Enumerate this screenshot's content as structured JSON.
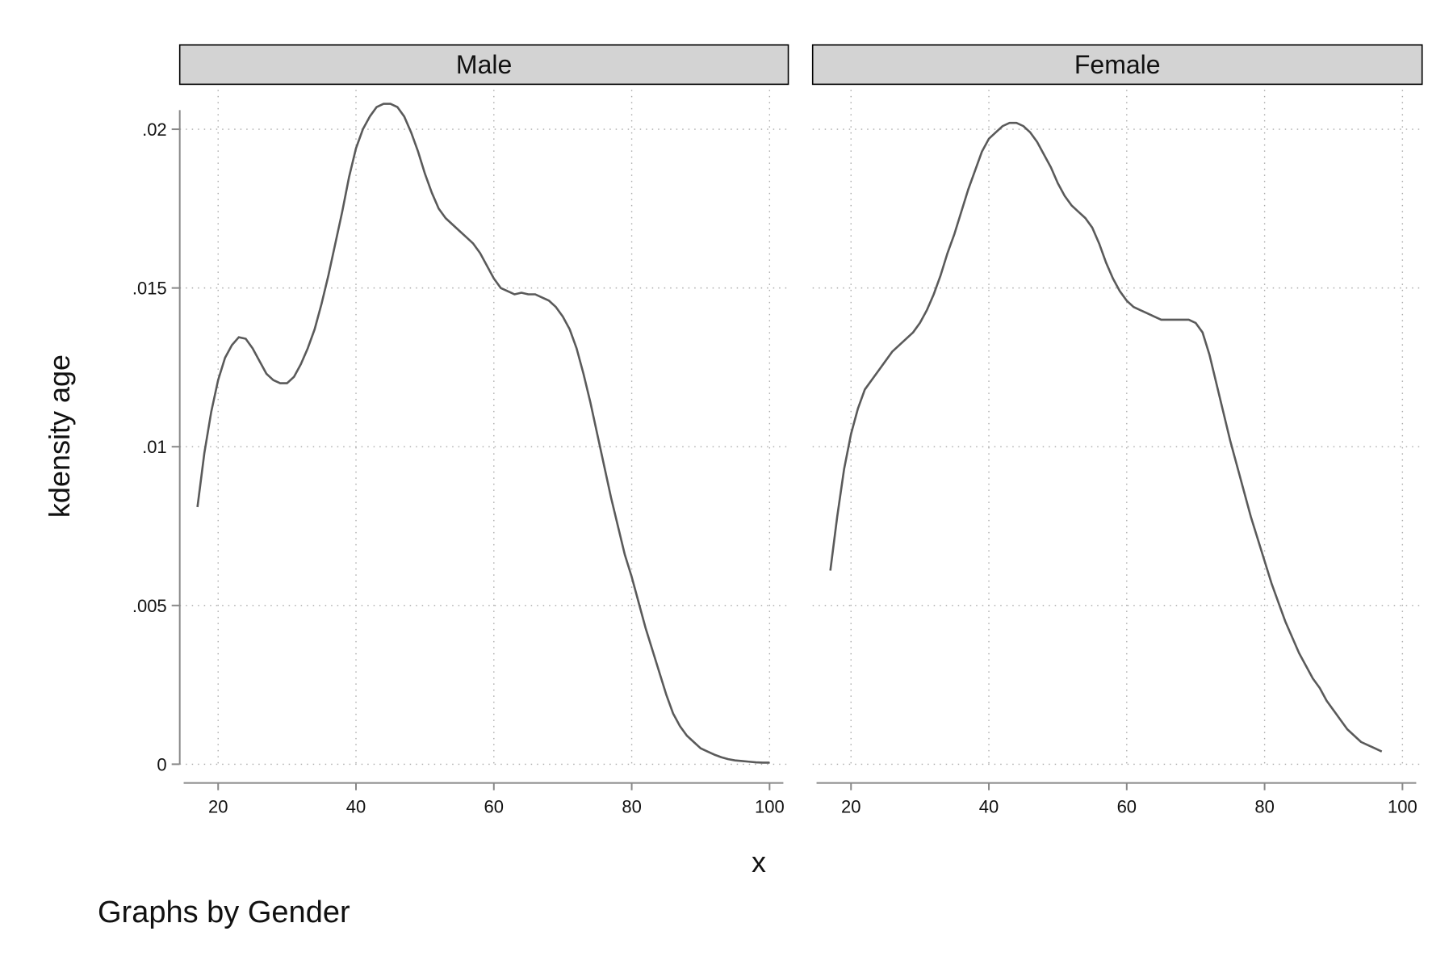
{
  "chart_data": {
    "type": "line",
    "ylabel": "kdensity age",
    "xlabel": "x",
    "note": "Graphs by Gender",
    "grid": true,
    "xlim": [
      15,
      102
    ],
    "ylim": [
      0,
      0.0211
    ],
    "xticks": [
      {
        "value": 20,
        "label": "20"
      },
      {
        "value": 40,
        "label": "40"
      },
      {
        "value": 60,
        "label": "60"
      },
      {
        "value": 80,
        "label": "80"
      },
      {
        "value": 100,
        "label": "100"
      }
    ],
    "yticks": [
      {
        "value": 0,
        "label": "0"
      },
      {
        "value": 0.005,
        "label": ".005"
      },
      {
        "value": 0.01,
        "label": ".01"
      },
      {
        "value": 0.015,
        "label": ".015"
      },
      {
        "value": 0.02,
        "label": ".02"
      }
    ],
    "line_color": "#5a5a5a",
    "panels": [
      {
        "strip": "Male",
        "points": [
          [
            17,
            0.0081
          ],
          [
            18,
            0.0098
          ],
          [
            19,
            0.0111
          ],
          [
            20,
            0.0121
          ],
          [
            21,
            0.0128
          ],
          [
            22,
            0.0132
          ],
          [
            23,
            0.01345
          ],
          [
            24,
            0.0134
          ],
          [
            25,
            0.0131
          ],
          [
            26,
            0.0127
          ],
          [
            27,
            0.0123
          ],
          [
            28,
            0.0121
          ],
          [
            29,
            0.012
          ],
          [
            30,
            0.012
          ],
          [
            31,
            0.0122
          ],
          [
            32,
            0.0126
          ],
          [
            33,
            0.0131
          ],
          [
            34,
            0.0137
          ],
          [
            35,
            0.0145
          ],
          [
            36,
            0.0154
          ],
          [
            37,
            0.0164
          ],
          [
            38,
            0.0174
          ],
          [
            39,
            0.0185
          ],
          [
            40,
            0.0194
          ],
          [
            41,
            0.02
          ],
          [
            42,
            0.0204
          ],
          [
            43,
            0.0207
          ],
          [
            44,
            0.0208
          ],
          [
            45,
            0.0208
          ],
          [
            46,
            0.0207
          ],
          [
            47,
            0.0204
          ],
          [
            48,
            0.0199
          ],
          [
            49,
            0.0193
          ],
          [
            50,
            0.0186
          ],
          [
            51,
            0.018
          ],
          [
            52,
            0.0175
          ],
          [
            53,
            0.0172
          ],
          [
            54,
            0.017
          ],
          [
            55,
            0.0168
          ],
          [
            56,
            0.0166
          ],
          [
            57,
            0.0164
          ],
          [
            58,
            0.0161
          ],
          [
            59,
            0.0157
          ],
          [
            60,
            0.0153
          ],
          [
            61,
            0.015
          ],
          [
            62,
            0.0149
          ],
          [
            63,
            0.0148
          ],
          [
            64,
            0.01485
          ],
          [
            65,
            0.0148
          ],
          [
            66,
            0.0148
          ],
          [
            67,
            0.0147
          ],
          [
            68,
            0.0146
          ],
          [
            69,
            0.0144
          ],
          [
            70,
            0.0141
          ],
          [
            71,
            0.0137
          ],
          [
            72,
            0.0131
          ],
          [
            73,
            0.0123
          ],
          [
            74,
            0.0114
          ],
          [
            75,
            0.0104
          ],
          [
            76,
            0.0094
          ],
          [
            77,
            0.0084
          ],
          [
            78,
            0.0075
          ],
          [
            79,
            0.0066
          ],
          [
            80,
            0.0059
          ],
          [
            81,
            0.0051
          ],
          [
            82,
            0.0043
          ],
          [
            83,
            0.0036
          ],
          [
            84,
            0.0029
          ],
          [
            85,
            0.0022
          ],
          [
            86,
            0.0016
          ],
          [
            87,
            0.0012
          ],
          [
            88,
            0.0009
          ],
          [
            89,
            0.0007
          ],
          [
            90,
            0.0005
          ],
          [
            91,
            0.0004
          ],
          [
            92,
            0.0003
          ],
          [
            93,
            0.00022
          ],
          [
            94,
            0.00016
          ],
          [
            95,
            0.00012
          ],
          [
            96,
            0.0001
          ],
          [
            97,
            8e-05
          ],
          [
            98,
            6e-05
          ],
          [
            99,
            5e-05
          ],
          [
            100,
            5e-05
          ]
        ]
      },
      {
        "strip": "Female",
        "points": [
          [
            17,
            0.0061
          ],
          [
            18,
            0.0078
          ],
          [
            19,
            0.0093
          ],
          [
            20,
            0.0104
          ],
          [
            21,
            0.0112
          ],
          [
            22,
            0.0118
          ],
          [
            23,
            0.0121
          ],
          [
            24,
            0.0124
          ],
          [
            25,
            0.0127
          ],
          [
            26,
            0.013
          ],
          [
            27,
            0.0132
          ],
          [
            28,
            0.0134
          ],
          [
            29,
            0.0136
          ],
          [
            30,
            0.0139
          ],
          [
            31,
            0.0143
          ],
          [
            32,
            0.0148
          ],
          [
            33,
            0.0154
          ],
          [
            34,
            0.0161
          ],
          [
            35,
            0.0167
          ],
          [
            36,
            0.0174
          ],
          [
            37,
            0.0181
          ],
          [
            38,
            0.0187
          ],
          [
            39,
            0.0193
          ],
          [
            40,
            0.0197
          ],
          [
            41,
            0.0199
          ],
          [
            42,
            0.0201
          ],
          [
            43,
            0.0202
          ],
          [
            44,
            0.0202
          ],
          [
            45,
            0.0201
          ],
          [
            46,
            0.0199
          ],
          [
            47,
            0.0196
          ],
          [
            48,
            0.0192
          ],
          [
            49,
            0.0188
          ],
          [
            50,
            0.0183
          ],
          [
            51,
            0.0179
          ],
          [
            52,
            0.0176
          ],
          [
            53,
            0.0174
          ],
          [
            54,
            0.0172
          ],
          [
            55,
            0.0169
          ],
          [
            56,
            0.0164
          ],
          [
            57,
            0.0158
          ],
          [
            58,
            0.0153
          ],
          [
            59,
            0.0149
          ],
          [
            60,
            0.0146
          ],
          [
            61,
            0.0144
          ],
          [
            62,
            0.0143
          ],
          [
            63,
            0.0142
          ],
          [
            64,
            0.0141
          ],
          [
            65,
            0.014
          ],
          [
            66,
            0.014
          ],
          [
            67,
            0.014
          ],
          [
            68,
            0.014
          ],
          [
            69,
            0.014
          ],
          [
            70,
            0.0139
          ],
          [
            71,
            0.0136
          ],
          [
            72,
            0.0129
          ],
          [
            73,
            0.012
          ],
          [
            74,
            0.0111
          ],
          [
            75,
            0.0102
          ],
          [
            76,
            0.0094
          ],
          [
            77,
            0.0086
          ],
          [
            78,
            0.0078
          ],
          [
            79,
            0.0071
          ],
          [
            80,
            0.0064
          ],
          [
            81,
            0.0057
          ],
          [
            82,
            0.0051
          ],
          [
            83,
            0.0045
          ],
          [
            84,
            0.004
          ],
          [
            85,
            0.0035
          ],
          [
            86,
            0.0031
          ],
          [
            87,
            0.0027
          ],
          [
            88,
            0.0024
          ],
          [
            89,
            0.002
          ],
          [
            90,
            0.0017
          ],
          [
            91,
            0.0014
          ],
          [
            92,
            0.0011
          ],
          [
            93,
            0.0009
          ],
          [
            94,
            0.0007
          ],
          [
            95,
            0.0006
          ],
          [
            96,
            0.0005
          ],
          [
            97,
            0.0004
          ]
        ]
      }
    ]
  }
}
